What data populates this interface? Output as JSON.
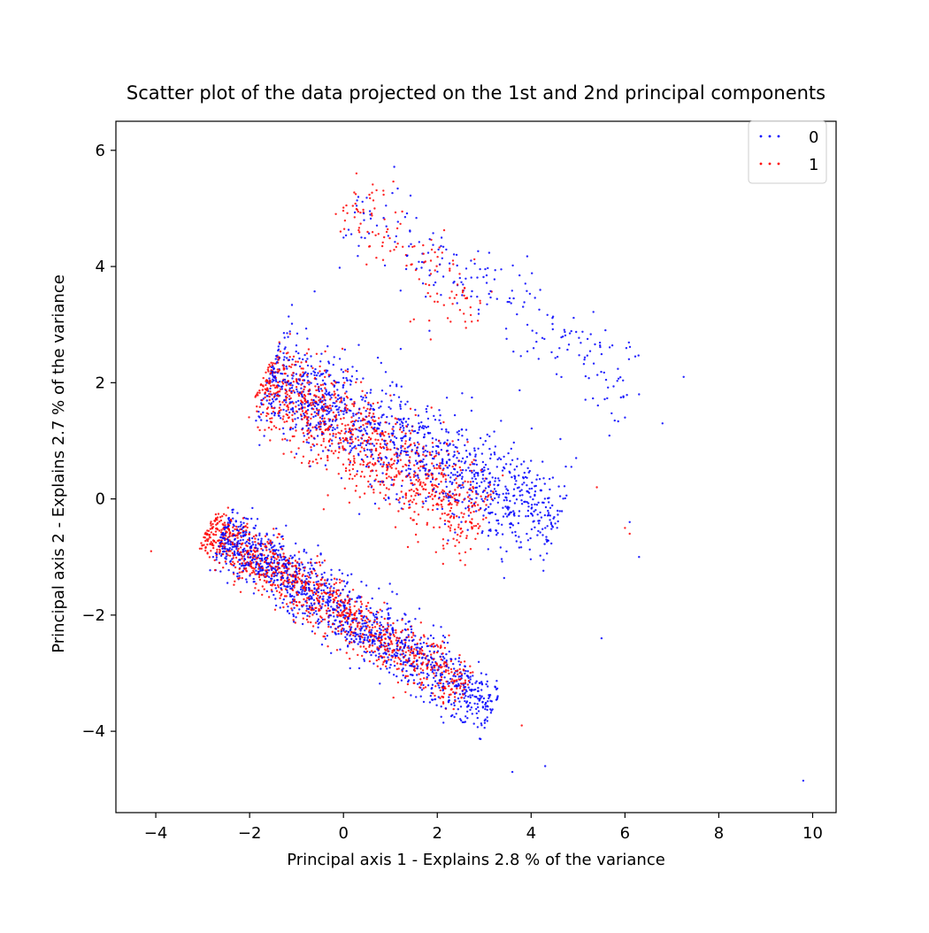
{
  "chart_data": {
    "type": "scatter",
    "title": "Scatter plot of the data projected on the 1st and 2nd principal components",
    "xlabel": "Principal axis 1 - Explains 2.8 % of the variance",
    "ylabel": "Principal axis 2 - Explains 2.7 % of the variance",
    "xlim": [
      -4.85,
      10.5
    ],
    "ylim": [
      -5.4,
      6.5
    ],
    "x_ticks": [
      -4,
      -2,
      0,
      2,
      4,
      6,
      8,
      10
    ],
    "y_ticks": [
      -4,
      -2,
      0,
      2,
      4,
      6
    ],
    "grid": false,
    "legend_position": "top-right",
    "series": [
      {
        "name": "0",
        "color": "#0000ff",
        "clusters": [
          {
            "from": [
              -2.6,
              -0.6
            ],
            "to": [
              3.2,
              -3.6
            ],
            "width": 0.8,
            "count": 1300
          },
          {
            "from": [
              -1.6,
              2.1
            ],
            "to": [
              4.6,
              -0.4
            ],
            "width": 1.3,
            "count": 1250
          },
          {
            "from": [
              0.2,
              5.0
            ],
            "to": [
              6.2,
              2.0
            ],
            "width": 1.2,
            "count": 220
          }
        ],
        "points": [
          [
            9.8,
            -4.85
          ],
          [
            7.25,
            2.1
          ],
          [
            6.8,
            1.3
          ],
          [
            6.3,
            -1.0
          ],
          [
            5.5,
            -2.4
          ],
          [
            6.1,
            -0.4
          ],
          [
            3.6,
            -4.7
          ],
          [
            4.3,
            -4.6
          ],
          [
            6.0,
            1.4
          ],
          [
            6.3,
            1.8
          ]
        ]
      },
      {
        "name": "1",
        "color": "#ff0000",
        "clusters": [
          {
            "from": [
              -2.9,
              -0.5
            ],
            "to": [
              2.6,
              -3.3
            ],
            "width": 0.7,
            "count": 1100
          },
          {
            "from": [
              -1.7,
              2.1
            ],
            "to": [
              3.0,
              -0.4
            ],
            "width": 1.2,
            "count": 1000
          },
          {
            "from": [
              0.0,
              5.2
            ],
            "to": [
              3.0,
              3.2
            ],
            "width": 1.0,
            "count": 130
          }
        ],
        "points": [
          [
            -4.1,
            -0.9
          ],
          [
            6.0,
            -0.5
          ],
          [
            6.1,
            -0.6
          ],
          [
            5.4,
            0.2
          ],
          [
            3.8,
            -3.9
          ]
        ]
      }
    ]
  }
}
